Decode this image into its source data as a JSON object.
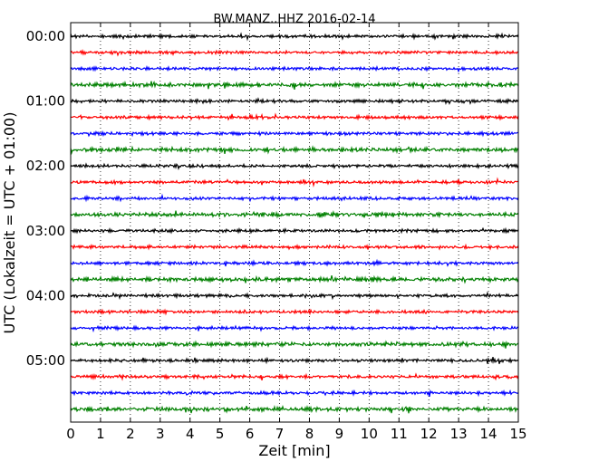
{
  "chart_data": {
    "type": "line",
    "title": "BW.MANZ..HHZ 2016-02-14",
    "xlabel": "Zeit  [min]",
    "ylabel": "UTC (Lokalzeit = UTC + 01:00)",
    "xlim": [
      0,
      15
    ],
    "x_ticks": [
      "0",
      "1",
      "2",
      "3",
      "4",
      "5",
      "6",
      "7",
      "8",
      "9",
      "10",
      "11",
      "12",
      "13",
      "14",
      "15"
    ],
    "y_ticks": [
      "00:00",
      "01:00",
      "02:00",
      "03:00",
      "04:00",
      "05:00"
    ],
    "trace_interval_minutes": 15,
    "trace_count": 24,
    "trace_colors": [
      "#000000",
      "#ff0000",
      "#0000ff",
      "#008000"
    ],
    "vertical_grid": true,
    "grid_style": "dotted"
  }
}
